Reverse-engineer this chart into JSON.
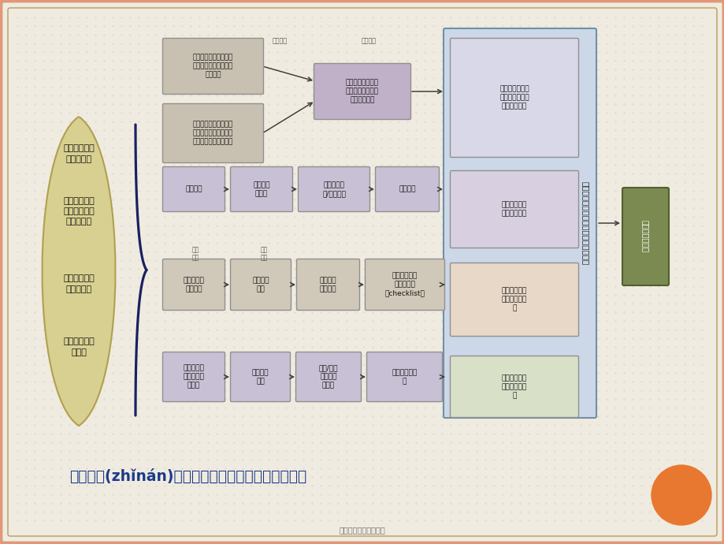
{
  "bg_color": "#f0ebe0",
  "title_text": "技术指南(zhǐnán)：面向中小学校、适宜性、实用性",
  "footer_text": "第三页，共五十四页。",
  "title_color": "#1a3a8a",
  "left_shape_color": "#d8d090",
  "left_shape_edge": "#b0a050",
  "left_texts": [
    "学生传染病历\n史发病情况",
    "学校传染病突\n发公共卫生事\n件发生情况",
    "学校传染病疫\n情调查分析",
    "学校传染病管\n理状况"
  ],
  "brace_color": "#1a2060",
  "input_box_color": "#c8c0b0",
  "input_box_edge": "#909090",
  "input_box1": "国内外症状监测及早期\n预警的方法理论（信息\n资料库）",
  "input_box2": "国内学校传染病监测上\n报处理、晨检、因病缺\n课追溯等工作实施状况",
  "mid_box_color": "#c0b0c8",
  "mid_box_edge": "#909090",
  "mid_box1": "以学校为基础的症\n状监测技术方案及\n预警技术指南",
  "label_xztl": "小组讨论",
  "label_zjzx": "专家咨询",
  "label_zj1": "专家\n咨询",
  "label_zj2": "专家\n咨询",
  "row2_color": "#c8c0d4",
  "row2_edge": "#909090",
  "row2_boxes": [
    "危害分析",
    "确定关键\n控制点",
    "建立关键预\n防/控制措施",
    "试用修订"
  ],
  "row3_color": "#d0c8b8",
  "row3_edge": "#909090",
  "row3_boxes": [
    "疫情种类及\n影响因素",
    "风险评估\n指标",
    "建立风险\n评估程序",
    "传染病简易风\n险评估工具\n（checklist）"
  ],
  "row4_color": "#c8c0d4",
  "row4_edge": "#909090",
  "row4_boxes": [
    "编制符合不\n同阶段的教\n育大纲",
    "知识技能\n要点",
    "传统/多媒\n体教学课\n件开发",
    "课件试用与修\n订"
  ],
  "right_panel_bg": "#ccd8e8",
  "right_panel_edge": "#7090a8",
  "right_box1_color": "#d8d8e8",
  "right_box2_color": "#d8d0e0",
  "right_box3_color": "#e8d8c8",
  "right_box4_color": "#d8e0c8",
  "right_boxes": [
    "以学校为基础的\n传染病症状监测\n预警适宜技术",
    "学校传染病关\n键控制点技术",
    "学校传染病风\n险评估适宜技\n术",
    "中小学校传染\n病健康教育课\n件"
  ],
  "right_panel_title": "中小学校传染病综合防制适宜技术指南",
  "far_right_color": "#7a8a50",
  "far_right_edge": "#506030",
  "far_right_text": "基地应用与评估",
  "orange_color": "#e87830",
  "arrow_color": "#404040",
  "dot_color": "#c8c0a8"
}
